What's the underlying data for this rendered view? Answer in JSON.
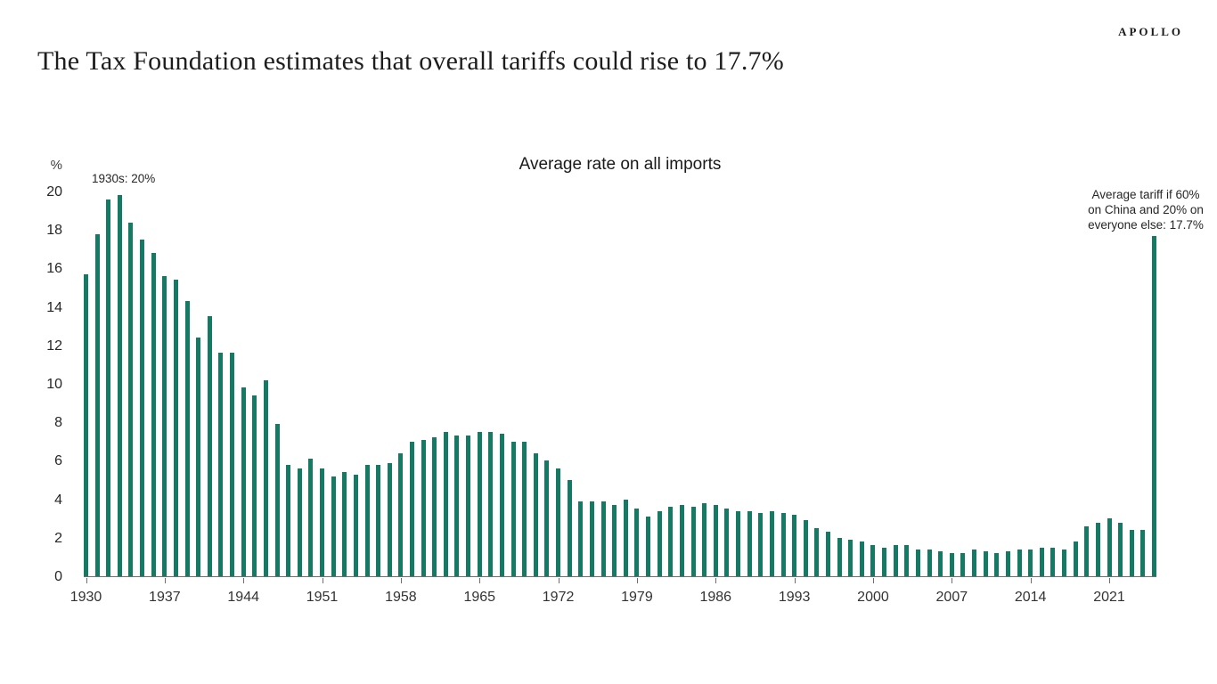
{
  "header": {
    "title": "The Tax Foundation estimates that overall tariffs could rise to 17.7%",
    "brand": "APOLLO"
  },
  "chart": {
    "title": "Average rate on all imports",
    "unit_label": "%",
    "annotation_left": "1930s: 20%",
    "annotation_right_lines": [
      "Average tariff if 60%",
      "on China and 20% on",
      "everyone else: 17.7%"
    ],
    "colors": {
      "bar": "#147a64",
      "axis": "#6e6e6e",
      "text": "#1c1c1c"
    }
  },
  "chart_data": {
    "type": "bar",
    "title": "Average rate on all imports",
    "xlabel": "",
    "ylabel": "%",
    "ylim": [
      0,
      20
    ],
    "grid": false,
    "legend": "none",
    "y_ticks": [
      0,
      2,
      4,
      6,
      8,
      10,
      12,
      14,
      16,
      18,
      20
    ],
    "x_tick_labels": [
      "1930",
      "1937",
      "1944",
      "1951",
      "1958",
      "1965",
      "1972",
      "1979",
      "1986",
      "1993",
      "2000",
      "2007",
      "2014",
      "2021"
    ],
    "start_year": 1930,
    "categories": [
      "1930",
      "1931",
      "1932",
      "1933",
      "1934",
      "1935",
      "1936",
      "1937",
      "1938",
      "1939",
      "1940",
      "1941",
      "1942",
      "1943",
      "1944",
      "1945",
      "1946",
      "1947",
      "1948",
      "1949",
      "1950",
      "1951",
      "1952",
      "1953",
      "1954",
      "1955",
      "1956",
      "1957",
      "1958",
      "1959",
      "1960",
      "1961",
      "1962",
      "1963",
      "1964",
      "1965",
      "1966",
      "1967",
      "1968",
      "1969",
      "1970",
      "1971",
      "1972",
      "1973",
      "1974",
      "1975",
      "1976",
      "1977",
      "1978",
      "1979",
      "1980",
      "1981",
      "1982",
      "1983",
      "1984",
      "1985",
      "1986",
      "1987",
      "1988",
      "1989",
      "1990",
      "1991",
      "1992",
      "1993",
      "1994",
      "1995",
      "1996",
      "1997",
      "1998",
      "1999",
      "2000",
      "2001",
      "2002",
      "2003",
      "2004",
      "2005",
      "2006",
      "2007",
      "2008",
      "2009",
      "2010",
      "2011",
      "2012",
      "2013",
      "2014",
      "2015",
      "2016",
      "2017",
      "2018",
      "2019",
      "2020",
      "2021",
      "2022",
      "2023",
      "2024",
      "Projection: 60% on China, 20% on everyone else"
    ],
    "values": [
      15.7,
      17.8,
      19.6,
      19.8,
      18.4,
      17.5,
      16.8,
      15.6,
      15.4,
      14.3,
      12.4,
      13.5,
      11.6,
      11.6,
      9.8,
      9.4,
      10.2,
      7.9,
      5.8,
      5.6,
      6.1,
      5.6,
      5.2,
      5.4,
      5.3,
      5.8,
      5.8,
      5.9,
      6.4,
      7.0,
      7.1,
      7.2,
      7.5,
      7.3,
      7.3,
      7.5,
      7.5,
      7.4,
      7.0,
      7.0,
      6.4,
      6.0,
      5.6,
      5.0,
      3.9,
      3.9,
      3.9,
      3.7,
      4.0,
      3.5,
      3.1,
      3.4,
      3.6,
      3.7,
      3.6,
      3.8,
      3.7,
      3.5,
      3.4,
      3.4,
      3.3,
      3.4,
      3.3,
      3.2,
      2.9,
      2.5,
      2.3,
      2.0,
      1.9,
      1.8,
      1.6,
      1.5,
      1.6,
      1.6,
      1.4,
      1.4,
      1.3,
      1.2,
      1.2,
      1.4,
      1.3,
      1.2,
      1.3,
      1.4,
      1.4,
      1.5,
      1.5,
      1.4,
      1.8,
      2.6,
      2.8,
      3.0,
      2.8,
      2.4,
      2.4,
      17.7
    ],
    "annotations": [
      {
        "text": "1930s: 20%",
        "target": "1930s peak"
      },
      {
        "text": "Average tariff if 60% on China and 20% on everyone else: 17.7%",
        "target": "final projection bar"
      }
    ]
  }
}
